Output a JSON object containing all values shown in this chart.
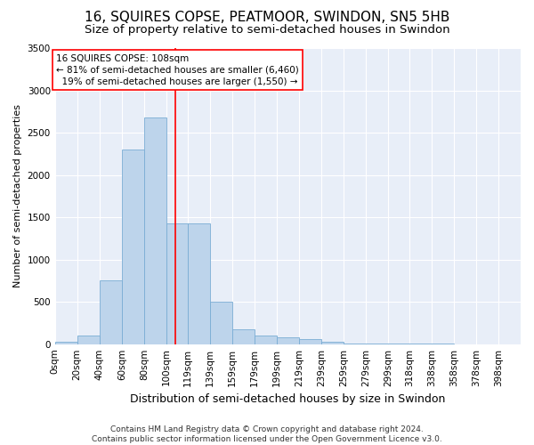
{
  "title": "16, SQUIRES COPSE, PEATMOOR, SWINDON, SN5 5HB",
  "subtitle": "Size of property relative to semi-detached houses in Swindon",
  "xlabel": "Distribution of semi-detached houses by size in Swindon",
  "ylabel": "Number of semi-detached properties",
  "footer_line1": "Contains HM Land Registry data © Crown copyright and database right 2024.",
  "footer_line2": "Contains public sector information licensed under the Open Government Licence v3.0.",
  "categories": [
    "0sqm",
    "20sqm",
    "40sqm",
    "60sqm",
    "80sqm",
    "100sqm",
    "119sqm",
    "139sqm",
    "159sqm",
    "179sqm",
    "199sqm",
    "219sqm",
    "239sqm",
    "259sqm",
    "279sqm",
    "299sqm",
    "318sqm",
    "338sqm",
    "358sqm",
    "378sqm",
    "398sqm"
  ],
  "bar_values": [
    30,
    100,
    750,
    2300,
    2680,
    1430,
    1430,
    500,
    175,
    100,
    80,
    55,
    30,
    10,
    5,
    3,
    3,
    2,
    1,
    0,
    0
  ],
  "bar_color": "#bdd4eb",
  "bar_edge_color": "#7aadd4",
  "vline_x": 108,
  "vline_color": "red",
  "annotation_text": "16 SQUIRES COPSE: 108sqm\n← 81% of semi-detached houses are smaller (6,460)\n  19% of semi-detached houses are larger (1,550) →",
  "annotation_box_color": "white",
  "annotation_box_edge": "red",
  "ylim": [
    0,
    3500
  ],
  "yticks": [
    0,
    500,
    1000,
    1500,
    2000,
    2500,
    3000,
    3500
  ],
  "bin_edges": [
    0,
    20,
    40,
    60,
    80,
    100,
    119,
    139,
    159,
    179,
    199,
    219,
    239,
    259,
    279,
    299,
    318,
    338,
    358,
    378,
    398,
    418
  ],
  "plot_bg_color": "#e8eef8",
  "title_fontsize": 11,
  "subtitle_fontsize": 9.5,
  "xlabel_fontsize": 9,
  "ylabel_fontsize": 8,
  "tick_fontsize": 7.5,
  "footer_fontsize": 6.5,
  "annot_fontsize": 7.5
}
